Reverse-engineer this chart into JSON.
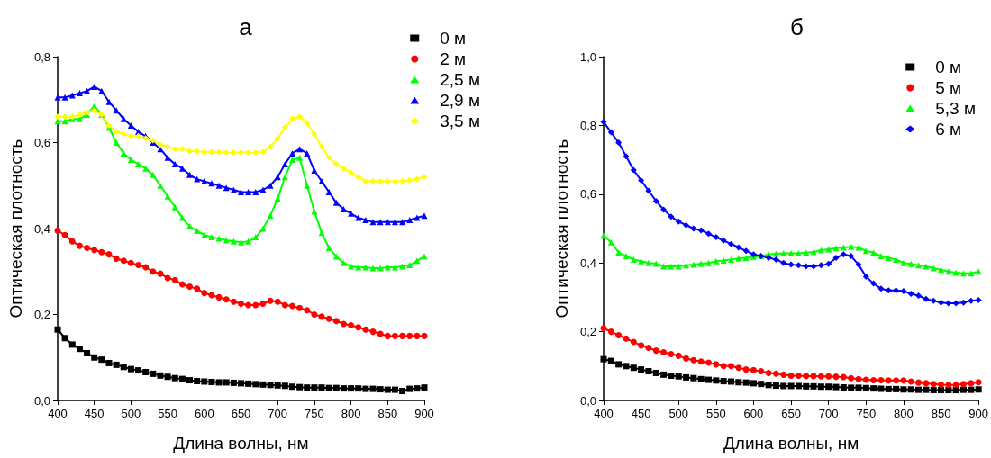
{
  "chart_data": [
    {
      "type": "line",
      "title": "а",
      "xlabel": "Длина волны, нм",
      "ylabel": "Оптическая плотность",
      "xlim": [
        400,
        900
      ],
      "xticks": [
        400,
        450,
        500,
        550,
        600,
        650,
        700,
        750,
        800,
        850,
        900
      ],
      "ylim": [
        0,
        0.8
      ],
      "yticks": [
        {
          "value": 0,
          "label": "0,0"
        },
        {
          "value": 0.2,
          "label": "0,2"
        },
        {
          "value": 0.4,
          "label": "0,4"
        },
        {
          "value": 0.6,
          "label": "0,6"
        },
        {
          "value": 0.8,
          "label": "0,8"
        }
      ],
      "grid": false,
      "legend": "top right",
      "line_style": "solid",
      "x": [
        400,
        410,
        420,
        430,
        440,
        450,
        460,
        470,
        480,
        490,
        500,
        510,
        520,
        530,
        540,
        550,
        560,
        570,
        580,
        590,
        600,
        610,
        620,
        630,
        640,
        650,
        660,
        670,
        680,
        690,
        700,
        710,
        720,
        730,
        740,
        750,
        760,
        770,
        780,
        790,
        800,
        810,
        820,
        830,
        840,
        850,
        860,
        870,
        880,
        890,
        900
      ],
      "series": [
        {
          "name": "0 м",
          "color": "#000000",
          "marker": "square",
          "values": [
            0.165,
            0.145,
            0.13,
            0.12,
            0.11,
            0.1,
            0.095,
            0.087,
            0.083,
            0.078,
            0.073,
            0.07,
            0.066,
            0.062,
            0.058,
            0.055,
            0.052,
            0.05,
            0.047,
            0.045,
            0.044,
            0.043,
            0.042,
            0.042,
            0.041,
            0.04,
            0.039,
            0.038,
            0.037,
            0.036,
            0.035,
            0.034,
            0.032,
            0.031,
            0.03,
            0.03,
            0.03,
            0.029,
            0.029,
            0.028,
            0.028,
            0.028,
            0.027,
            0.027,
            0.026,
            0.025,
            0.025,
            0.022,
            0.027,
            0.028,
            0.03
          ]
        },
        {
          "name": "2 м",
          "color": "#ff0000",
          "marker": "circle",
          "values": [
            0.395,
            0.385,
            0.37,
            0.36,
            0.355,
            0.35,
            0.345,
            0.34,
            0.33,
            0.325,
            0.32,
            0.315,
            0.31,
            0.3,
            0.295,
            0.285,
            0.28,
            0.27,
            0.265,
            0.26,
            0.25,
            0.245,
            0.24,
            0.235,
            0.23,
            0.225,
            0.222,
            0.222,
            0.225,
            0.232,
            0.23,
            0.222,
            0.22,
            0.215,
            0.21,
            0.2,
            0.195,
            0.19,
            0.185,
            0.178,
            0.175,
            0.17,
            0.165,
            0.16,
            0.155,
            0.15,
            0.15,
            0.15,
            0.15,
            0.15,
            0.15
          ]
        },
        {
          "name": "2,5 м",
          "color": "#00ff00",
          "marker": "triangle",
          "values": [
            0.65,
            0.65,
            0.655,
            0.655,
            0.665,
            0.685,
            0.665,
            0.635,
            0.6,
            0.575,
            0.56,
            0.55,
            0.54,
            0.525,
            0.5,
            0.475,
            0.45,
            0.425,
            0.405,
            0.395,
            0.385,
            0.38,
            0.377,
            0.373,
            0.37,
            0.368,
            0.37,
            0.38,
            0.4,
            0.43,
            0.47,
            0.52,
            0.56,
            0.565,
            0.5,
            0.44,
            0.39,
            0.355,
            0.335,
            0.32,
            0.312,
            0.31,
            0.31,
            0.308,
            0.308,
            0.31,
            0.31,
            0.312,
            0.315,
            0.325,
            0.335
          ]
        },
        {
          "name": "2,9 м",
          "color": "#0000ff",
          "marker": "triangle",
          "values": [
            0.705,
            0.705,
            0.71,
            0.715,
            0.72,
            0.73,
            0.72,
            0.695,
            0.675,
            0.655,
            0.64,
            0.625,
            0.615,
            0.6,
            0.585,
            0.565,
            0.55,
            0.54,
            0.525,
            0.515,
            0.51,
            0.505,
            0.5,
            0.495,
            0.49,
            0.485,
            0.485,
            0.485,
            0.49,
            0.5,
            0.52,
            0.55,
            0.575,
            0.585,
            0.575,
            0.535,
            0.51,
            0.485,
            0.46,
            0.445,
            0.435,
            0.425,
            0.42,
            0.415,
            0.415,
            0.415,
            0.415,
            0.415,
            0.42,
            0.425,
            0.43
          ]
        },
        {
          "name": "3,5 м",
          "color": "#ffff00",
          "marker": "diamond",
          "values": [
            0.66,
            0.66,
            0.66,
            0.665,
            0.67,
            0.675,
            0.665,
            0.64,
            0.625,
            0.62,
            0.615,
            0.615,
            0.61,
            0.605,
            0.595,
            0.59,
            0.585,
            0.585,
            0.58,
            0.58,
            0.578,
            0.578,
            0.578,
            0.577,
            0.577,
            0.577,
            0.577,
            0.577,
            0.578,
            0.59,
            0.61,
            0.635,
            0.655,
            0.66,
            0.645,
            0.62,
            0.59,
            0.565,
            0.55,
            0.54,
            0.53,
            0.52,
            0.51,
            0.51,
            0.51,
            0.51,
            0.51,
            0.51,
            0.512,
            0.515,
            0.52
          ]
        }
      ]
    },
    {
      "type": "line",
      "title": "б",
      "xlabel": "Длина волны, нм",
      "ylabel": "Оптическая плотность",
      "xlim": [
        400,
        900
      ],
      "xticks": [
        400,
        450,
        500,
        550,
        600,
        650,
        700,
        750,
        800,
        850,
        900
      ],
      "ylim": [
        0,
        1.0
      ],
      "yticks": [
        {
          "value": 0,
          "label": "0,0"
        },
        {
          "value": 0.2,
          "label": "0,2"
        },
        {
          "value": 0.4,
          "label": "0,4"
        },
        {
          "value": 0.6,
          "label": "0,6"
        },
        {
          "value": 0.8,
          "label": "0,8"
        },
        {
          "value": 1.0,
          "label": "1,0"
        }
      ],
      "grid": false,
      "legend": "top right",
      "line_style": "solid",
      "x": [
        400,
        410,
        420,
        430,
        440,
        450,
        460,
        470,
        480,
        490,
        500,
        510,
        520,
        530,
        540,
        550,
        560,
        570,
        580,
        590,
        600,
        610,
        620,
        630,
        640,
        650,
        660,
        670,
        680,
        690,
        700,
        710,
        720,
        730,
        740,
        750,
        760,
        770,
        780,
        790,
        800,
        810,
        820,
        830,
        840,
        850,
        860,
        870,
        880,
        890,
        900
      ],
      "series": [
        {
          "name": "0 м",
          "color": "#000000",
          "marker": "square",
          "values": [
            0.12,
            0.115,
            0.105,
            0.1,
            0.095,
            0.09,
            0.085,
            0.08,
            0.075,
            0.072,
            0.07,
            0.067,
            0.065,
            0.062,
            0.06,
            0.058,
            0.056,
            0.055,
            0.053,
            0.052,
            0.05,
            0.048,
            0.045,
            0.043,
            0.042,
            0.042,
            0.042,
            0.041,
            0.041,
            0.04,
            0.04,
            0.039,
            0.038,
            0.037,
            0.037,
            0.036,
            0.035,
            0.034,
            0.033,
            0.033,
            0.032,
            0.032,
            0.031,
            0.031,
            0.03,
            0.03,
            0.03,
            0.03,
            0.031,
            0.031,
            0.032
          ]
        },
        {
          "name": "5 м",
          "color": "#ff0000",
          "marker": "circle",
          "values": [
            0.21,
            0.2,
            0.19,
            0.18,
            0.17,
            0.16,
            0.153,
            0.145,
            0.14,
            0.135,
            0.13,
            0.122,
            0.117,
            0.113,
            0.11,
            0.105,
            0.1,
            0.1,
            0.095,
            0.09,
            0.088,
            0.085,
            0.08,
            0.078,
            0.075,
            0.072,
            0.072,
            0.071,
            0.071,
            0.07,
            0.07,
            0.069,
            0.068,
            0.065,
            0.062,
            0.06,
            0.059,
            0.059,
            0.058,
            0.058,
            0.058,
            0.055,
            0.052,
            0.05,
            0.048,
            0.046,
            0.045,
            0.045,
            0.048,
            0.05,
            0.053
          ]
        },
        {
          "name": "5,3 м",
          "color": "#00ff00",
          "marker": "triangle",
          "values": [
            0.48,
            0.46,
            0.43,
            0.42,
            0.41,
            0.405,
            0.4,
            0.398,
            0.39,
            0.39,
            0.39,
            0.393,
            0.395,
            0.398,
            0.4,
            0.405,
            0.407,
            0.41,
            0.413,
            0.415,
            0.418,
            0.42,
            0.425,
            0.427,
            0.428,
            0.428,
            0.428,
            0.43,
            0.432,
            0.437,
            0.44,
            0.443,
            0.445,
            0.447,
            0.445,
            0.435,
            0.43,
            0.42,
            0.415,
            0.41,
            0.4,
            0.397,
            0.393,
            0.39,
            0.385,
            0.38,
            0.375,
            0.372,
            0.37,
            0.37,
            0.375
          ]
        },
        {
          "name": "6 м",
          "color": "#0000ff",
          "marker": "diamond",
          "values": [
            0.81,
            0.78,
            0.75,
            0.71,
            0.67,
            0.64,
            0.61,
            0.58,
            0.555,
            0.535,
            0.52,
            0.51,
            0.5,
            0.495,
            0.485,
            0.475,
            0.465,
            0.455,
            0.445,
            0.435,
            0.425,
            0.42,
            0.415,
            0.41,
            0.4,
            0.395,
            0.393,
            0.39,
            0.39,
            0.393,
            0.397,
            0.415,
            0.425,
            0.42,
            0.395,
            0.36,
            0.34,
            0.325,
            0.32,
            0.32,
            0.318,
            0.31,
            0.305,
            0.295,
            0.29,
            0.285,
            0.283,
            0.283,
            0.285,
            0.29,
            0.292
          ]
        }
      ]
    }
  ]
}
